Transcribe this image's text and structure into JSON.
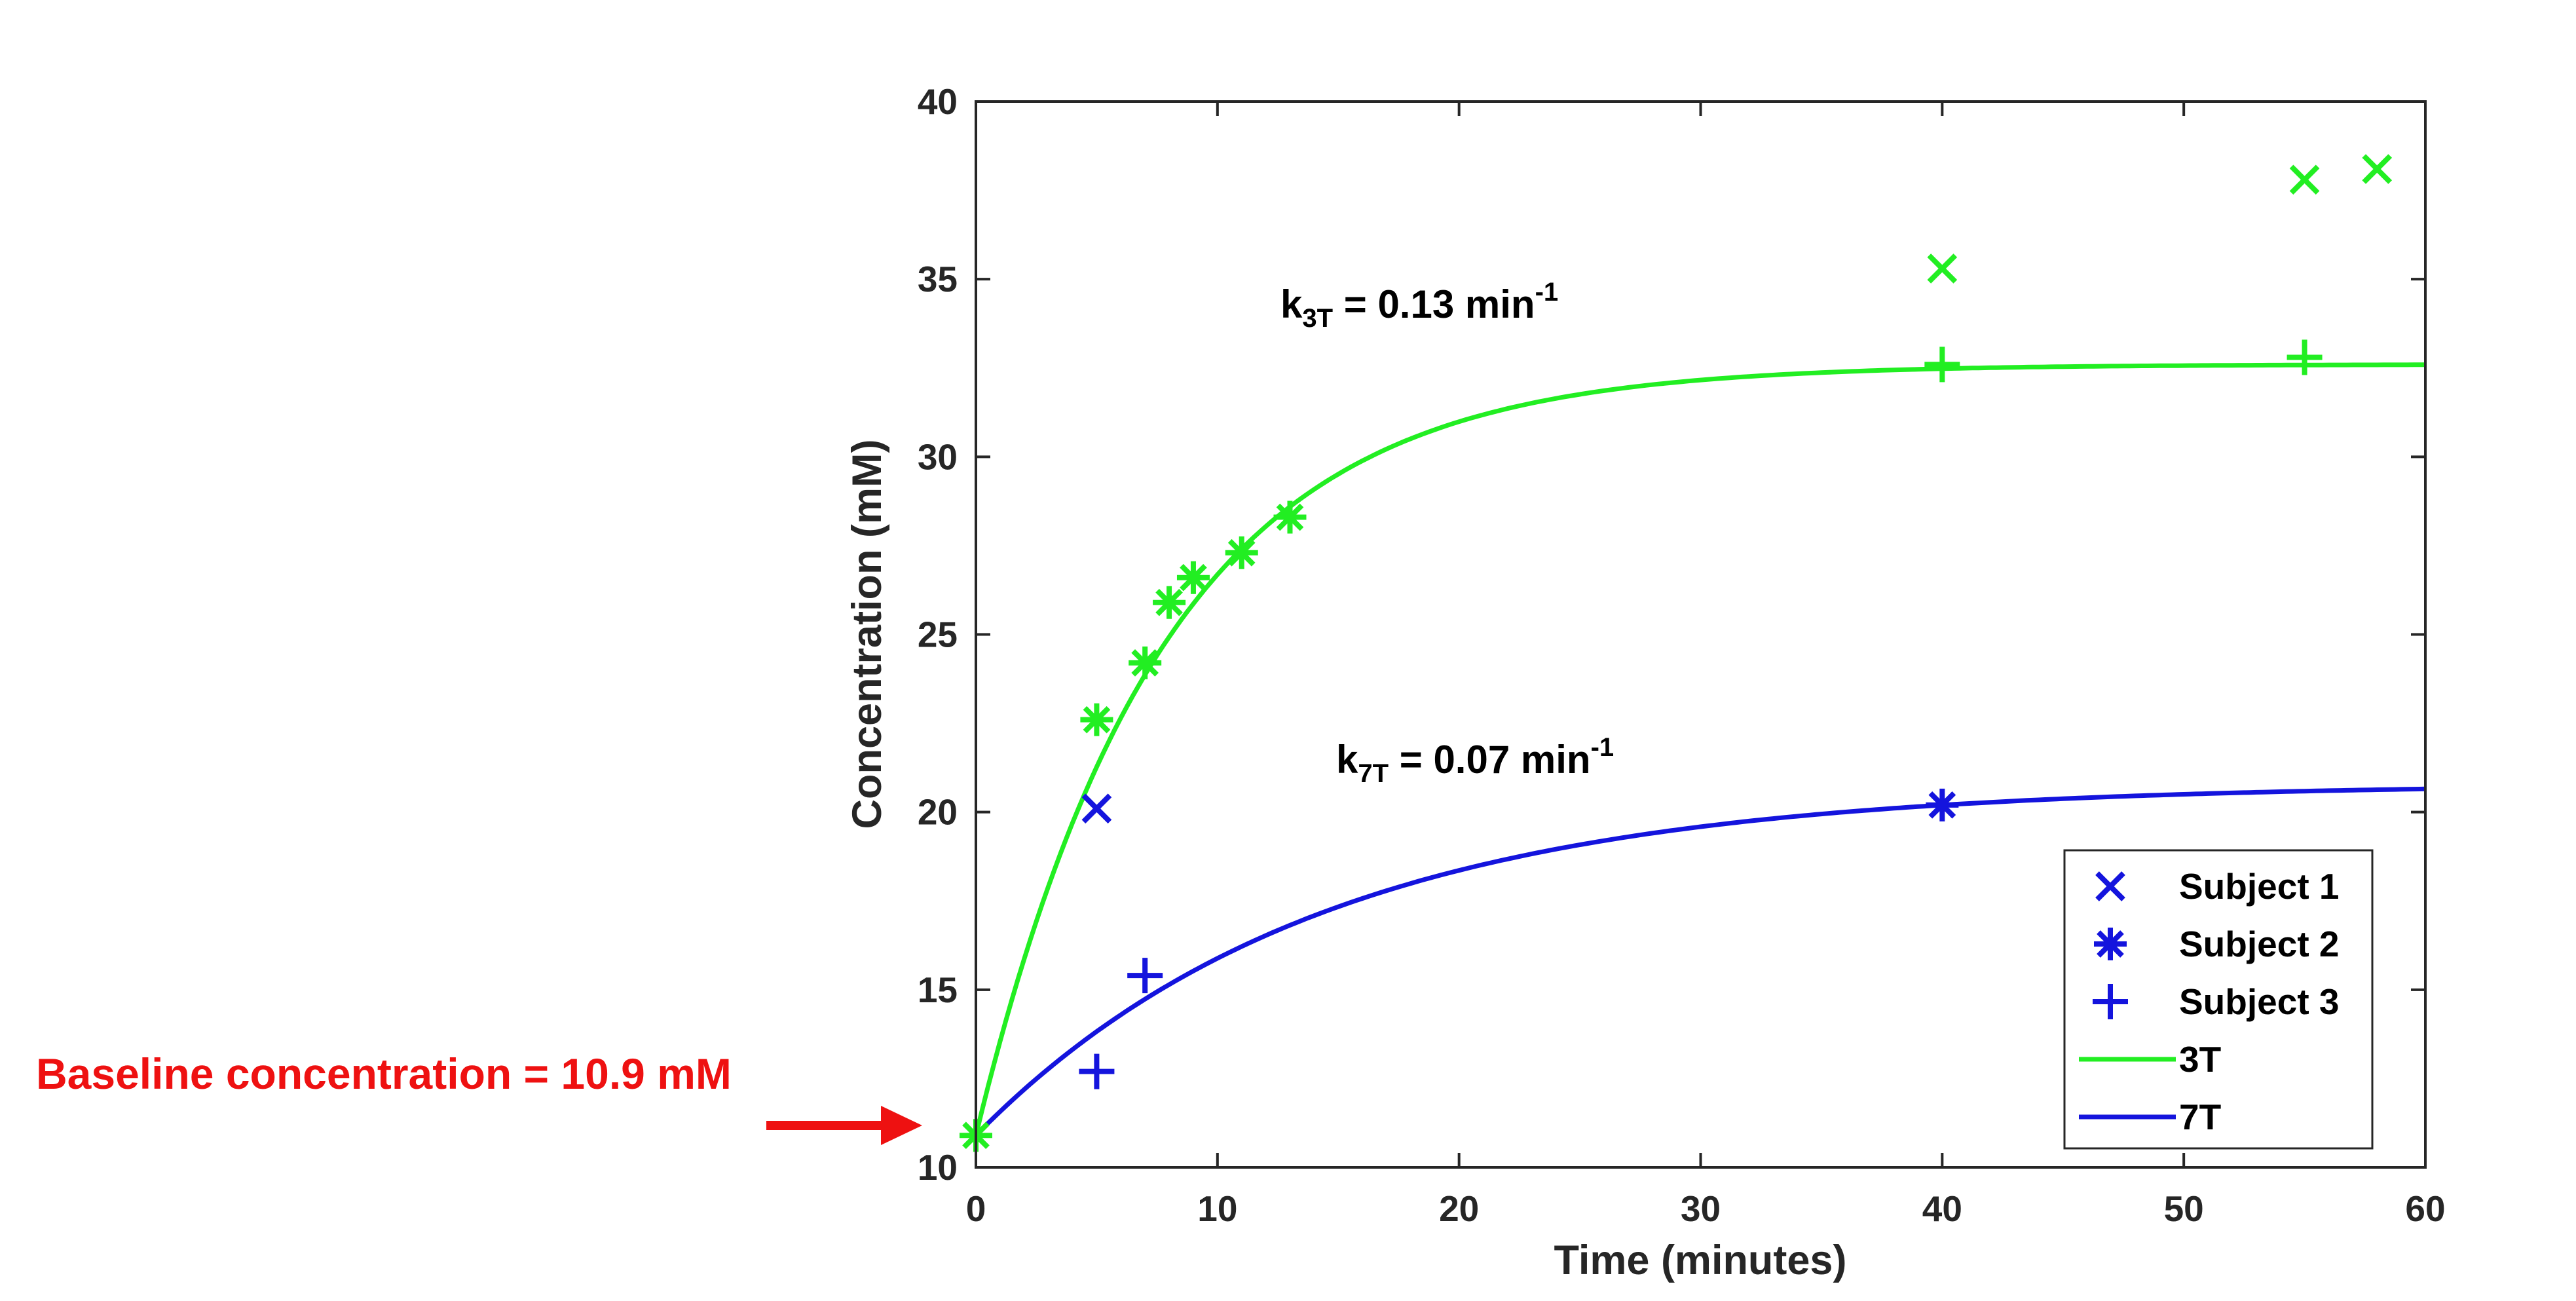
{
  "chart_data": {
    "type": "scatter",
    "xlabel": "Time (minutes)",
    "ylabel": "Concentration (mM)",
    "xlim": [
      0,
      60
    ],
    "ylim": [
      10,
      40
    ],
    "xticks": [
      0,
      10,
      20,
      30,
      40,
      50,
      60
    ],
    "yticks": [
      10,
      15,
      20,
      25,
      30,
      35,
      40
    ],
    "grid": false,
    "legend_position": "bottom-right",
    "colors": {
      "3T": "#22ee22",
      "7T": "#1414dd",
      "annotation": "#ee1111",
      "axis": "#262626"
    },
    "legend": [
      {
        "label": "Subject 1",
        "marker": "x"
      },
      {
        "label": "Subject 2",
        "marker": "asterisk"
      },
      {
        "label": "Subject 3",
        "marker": "plus"
      },
      {
        "label": "3T",
        "marker": "line",
        "color_key": "3T"
      },
      {
        "label": "7T",
        "marker": "line",
        "color_key": "7T"
      }
    ],
    "fits": [
      {
        "name": "3T",
        "baseline": 10.9,
        "plateau": 32.6,
        "k": 0.13
      },
      {
        "name": "7T",
        "baseline": 10.9,
        "plateau": 20.8,
        "k": 0.07
      }
    ],
    "series": [
      {
        "name": "Subject 1",
        "field": "3T",
        "marker": "x",
        "x": [
          40,
          55,
          58
        ],
        "y": [
          35.3,
          37.8,
          38.1
        ]
      },
      {
        "name": "Subject 2",
        "field": "3T",
        "marker": "asterisk",
        "x": [
          0,
          5,
          7,
          8,
          9,
          11,
          13
        ],
        "y": [
          10.9,
          22.6,
          24.2,
          25.9,
          26.6,
          27.3,
          28.3
        ]
      },
      {
        "name": "Subject 3",
        "field": "3T",
        "marker": "plus",
        "x": [
          40,
          55
        ],
        "y": [
          32.6,
          32.8
        ]
      },
      {
        "name": "Subject 1",
        "field": "7T",
        "marker": "x",
        "x": [
          5
        ],
        "y": [
          20.1
        ]
      },
      {
        "name": "Subject 2",
        "field": "7T",
        "marker": "asterisk",
        "x": [
          40
        ],
        "y": [
          20.2
        ]
      },
      {
        "name": "Subject 3",
        "field": "7T",
        "marker": "plus",
        "x": [
          5,
          7
        ],
        "y": [
          12.7,
          15.4
        ]
      }
    ],
    "annotations": {
      "k3T": {
        "prefix": "k",
        "sub": "3T",
        "value": " = 0.13 min",
        "sup": "-1"
      },
      "k7T": {
        "prefix": "k",
        "sub": "7T",
        "value": " = 0.07 min",
        "sup": "-1"
      },
      "baseline": "Baseline concentration = 10.9 mM"
    }
  }
}
